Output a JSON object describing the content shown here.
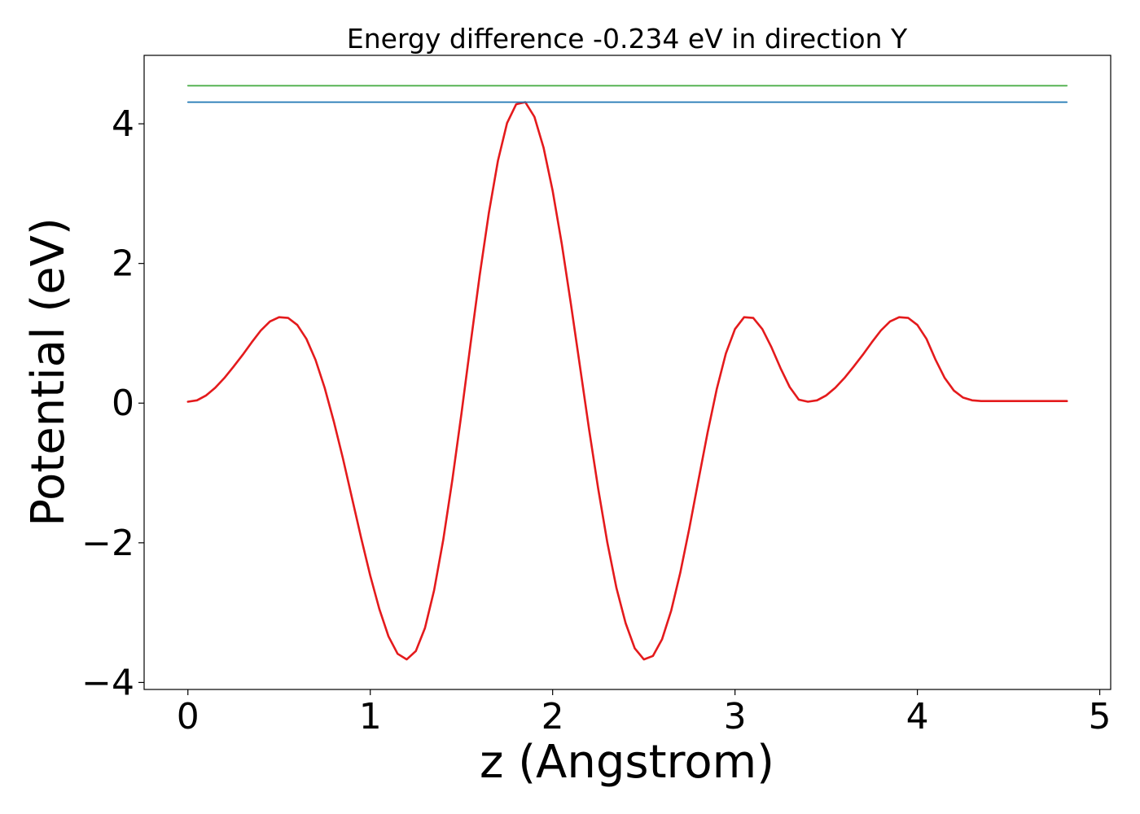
{
  "chart_data": {
    "type": "line",
    "title": "Energy difference -0.234 eV in direction Y",
    "xlabel": "z (Angstrom)",
    "ylabel": "Potential (eV)",
    "xlim": [
      -0.24,
      5.06
    ],
    "ylim": [
      -4.1,
      4.98
    ],
    "xticks": [
      0,
      1,
      2,
      3,
      4,
      5
    ],
    "xtick_labels": [
      "0",
      "1",
      "2",
      "3",
      "4",
      "5"
    ],
    "yticks": [
      -4,
      -2,
      0,
      2,
      4
    ],
    "ytick_labels": [
      "−4",
      "−2",
      "0",
      "2",
      "4"
    ],
    "grid": false,
    "legend": false,
    "series": [
      {
        "color": "#e41a1c",
        "x": [
          0.0,
          0.05,
          0.1,
          0.15,
          0.2,
          0.25,
          0.3,
          0.35,
          0.4,
          0.45,
          0.5,
          0.55,
          0.6,
          0.65,
          0.7,
          0.75,
          0.8,
          0.85,
          0.9,
          0.95,
          1.0,
          1.05,
          1.1,
          1.15,
          1.2,
          1.25,
          1.3,
          1.35,
          1.4,
          1.45,
          1.5,
          1.55,
          1.6,
          1.65,
          1.7,
          1.75,
          1.8,
          1.85,
          1.9,
          1.95,
          2.0,
          2.05,
          2.1,
          2.15,
          2.2,
          2.25,
          2.3,
          2.35,
          2.4,
          2.45,
          2.5,
          2.55,
          2.6,
          2.65,
          2.7,
          2.75,
          2.8,
          2.85,
          2.9,
          2.95,
          3.0,
          3.05,
          3.1,
          3.15,
          3.2,
          3.25,
          3.3,
          3.35,
          3.4,
          3.45,
          3.5,
          3.55,
          3.6,
          3.65,
          3.7,
          3.75,
          3.8,
          3.85,
          3.9,
          3.95,
          4.0,
          4.05,
          4.1,
          4.15,
          4.2,
          4.25,
          4.3,
          4.35,
          4.4,
          4.45,
          4.5,
          4.55,
          4.6,
          4.65,
          4.7,
          4.75,
          4.8,
          4.82
        ],
        "y": [
          0.02,
          0.04,
          0.11,
          0.22,
          0.36,
          0.52,
          0.69,
          0.87,
          1.04,
          1.17,
          1.23,
          1.22,
          1.12,
          0.92,
          0.62,
          0.22,
          -0.26,
          -0.79,
          -1.36,
          -1.93,
          -2.47,
          -2.95,
          -3.34,
          -3.59,
          -3.67,
          -3.55,
          -3.22,
          -2.68,
          -1.96,
          -1.1,
          -0.15,
          0.85,
          1.83,
          2.72,
          3.47,
          4.01,
          4.28,
          4.31,
          4.1,
          3.66,
          3.04,
          2.28,
          1.42,
          0.52,
          -0.38,
          -1.23,
          -2.0,
          -2.65,
          -3.15,
          -3.51,
          -3.67,
          -3.62,
          -3.38,
          -2.97,
          -2.43,
          -1.79,
          -1.1,
          -0.42,
          0.2,
          0.71,
          1.06,
          1.23,
          1.22,
          1.06,
          0.8,
          0.5,
          0.23,
          0.05,
          0.02,
          0.04,
          0.11,
          0.22,
          0.36,
          0.52,
          0.69,
          0.87,
          1.04,
          1.17,
          1.23,
          1.22,
          1.12,
          0.92,
          0.62,
          0.36,
          0.18,
          0.08,
          0.04,
          0.03,
          0.03,
          0.03,
          0.03,
          0.03,
          0.03,
          0.03,
          0.03,
          0.03,
          0.03,
          0.03
        ]
      },
      {
        "color": "#1f77b4",
        "x": [
          0.0,
          4.82
        ],
        "y": [
          4.31,
          4.31
        ]
      },
      {
        "color": "#4daf4a",
        "x": [
          0.0,
          4.82
        ],
        "y": [
          4.545,
          4.545
        ]
      }
    ]
  }
}
